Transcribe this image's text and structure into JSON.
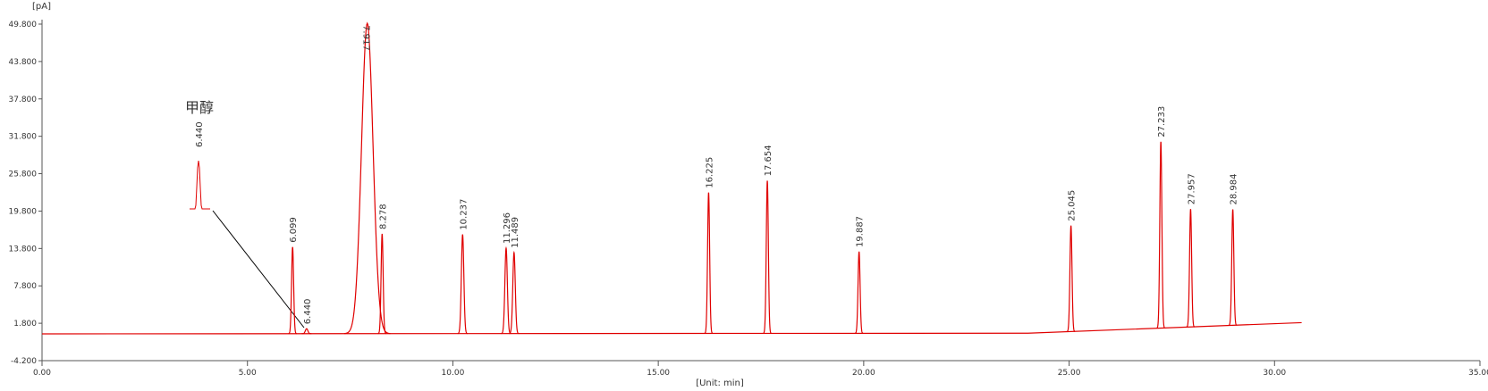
{
  "chart_data": {
    "type": "chromatogram",
    "y_unit": "[pA]",
    "x_label": "[Unit: min]",
    "color": "#e00000",
    "xlim": [
      0,
      35
    ],
    "ylim": [
      -4.2,
      49.8
    ],
    "xticks": [
      {
        "value": 0,
        "label": "0.00"
      },
      {
        "value": 5,
        "label": "5.00"
      },
      {
        "value": 10,
        "label": "10.00"
      },
      {
        "value": 15,
        "label": "15.00"
      },
      {
        "value": 20,
        "label": "20.00"
      },
      {
        "value": 25,
        "label": "25.00"
      },
      {
        "value": 30,
        "label": "30.00"
      },
      {
        "value": 35,
        "label": "35.00"
      }
    ],
    "yticks": [
      {
        "value": -4.2,
        "label": "-4.200"
      },
      {
        "value": 1.8,
        "label": "1.800"
      },
      {
        "value": 7.8,
        "label": "7.800"
      },
      {
        "value": 13.8,
        "label": "13.800"
      },
      {
        "value": 19.8,
        "label": "19.800"
      },
      {
        "value": 25.8,
        "label": "25.800"
      },
      {
        "value": 31.8,
        "label": "31.800"
      },
      {
        "value": 37.8,
        "label": "37.800"
      },
      {
        "value": 43.8,
        "label": "43.800"
      },
      {
        "value": 49.8,
        "label": "49.800"
      }
    ],
    "baseline": {
      "x": [
        0,
        24,
        30.66
      ],
      "values": [
        0.1,
        0.2,
        1.9
      ]
    },
    "peaks": {
      "x": [
        6.099,
        6.44,
        7.917,
        8.278,
        10.237,
        11.296,
        11.489,
        16.225,
        17.654,
        19.887,
        25.045,
        27.233,
        27.957,
        28.984
      ],
      "labels": [
        "6.099",
        "6.440",
        "7.917",
        "8.278",
        "10.237",
        "11.296",
        "11.489",
        "16.225",
        "17.654",
        "19.887",
        "25.045",
        "27.233",
        "27.957",
        "28.984"
      ],
      "values": [
        13.9,
        0.8,
        49.8,
        16.0,
        15.9,
        13.7,
        13.0,
        22.6,
        24.5,
        13.1,
        17.0,
        29.9,
        18.9,
        18.6
      ],
      "widths": [
        0.025,
        0.03,
        0.14,
        0.025,
        0.03,
        0.03,
        0.03,
        0.025,
        0.025,
        0.025,
        0.025,
        0.025,
        0.025,
        0.025
      ]
    },
    "annotation": {
      "text": "甲醇",
      "peak_label": "6.440"
    }
  }
}
